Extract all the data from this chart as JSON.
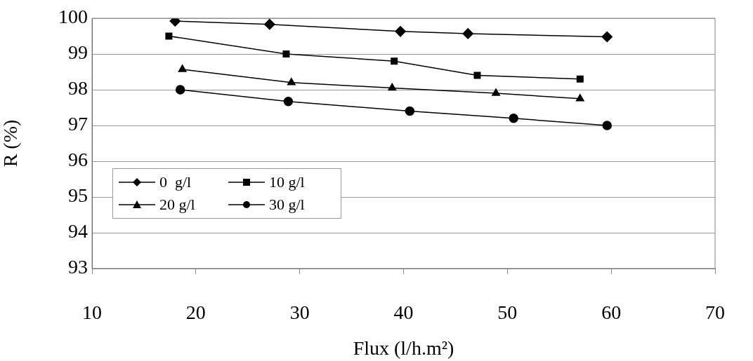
{
  "chart_data": {
    "type": "line",
    "xlabel": "Flux (l/h.m²)",
    "ylabel": "R (%)",
    "xlim": [
      10,
      70
    ],
    "xticks": [
      10,
      20,
      30,
      40,
      50,
      60,
      70
    ],
    "ylim": [
      93,
      100
    ],
    "yticks": [
      93,
      94,
      95,
      96,
      97,
      98,
      99,
      100
    ],
    "grid": "y",
    "legend": "bottom left",
    "line_style": "solid",
    "series": [
      {
        "name": "0  g/l",
        "color": "#000000",
        "marker": "diamond",
        "x": [
          18,
          27.1,
          39.7,
          46.2,
          59.6
        ],
        "values": [
          99.92,
          99.83,
          99.63,
          99.57,
          99.48
        ]
      },
      {
        "name": "10 g/l",
        "color": "#000000",
        "marker": "square",
        "x": [
          17.4,
          28.7,
          39.1,
          47.1,
          57
        ],
        "values": [
          99.5,
          99,
          98.8,
          98.4,
          98.3
        ]
      },
      {
        "name": "20 g/l",
        "color": "#000000",
        "marker": "triangle",
        "x": [
          18.7,
          29.2,
          38.9,
          48.9,
          57
        ],
        "values": [
          98.57,
          98.2,
          98.05,
          97.9,
          97.75
        ]
      },
      {
        "name": "30 g/l",
        "color": "#000000",
        "marker": "circle",
        "x": [
          18.5,
          28.9,
          40.6,
          50.6,
          59.6
        ],
        "values": [
          98,
          97.67,
          97.4,
          97.2,
          97
        ]
      }
    ]
  }
}
